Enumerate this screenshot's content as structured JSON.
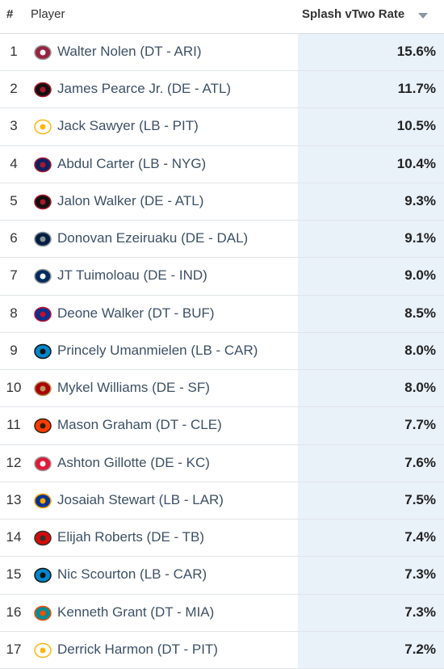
{
  "table": {
    "header": [
      "#",
      "Player",
      "Splash vTwo Rate"
    ],
    "rows": [
      [
        "1",
        "Walter Nolen (DT - ARI)",
        "15.6%"
      ],
      [
        "2",
        "James Pearce Jr. (DE - ATL)",
        "11.7%"
      ],
      [
        "3",
        "Jack Sawyer (LB - PIT)",
        "10.5%"
      ],
      [
        "4",
        "Abdul Carter (LB - NYG)",
        "10.4%"
      ],
      [
        "5",
        "Jalon Walker (DE - ATL)",
        "9.3%"
      ],
      [
        "6",
        "Donovan Ezeiruaku (DE - DAL)",
        "9.1%"
      ],
      [
        "7",
        "JT Tuimoloau (DE - IND)",
        "9.0%"
      ],
      [
        "8",
        "Deone Walker (DT - BUF)",
        "8.5%"
      ],
      [
        "9",
        "Princely Umanmielen (LB - CAR)",
        "8.0%"
      ],
      [
        "10",
        "Mykel Williams (DE - SF)",
        "8.0%"
      ],
      [
        "11",
        "Mason Graham (DT - CLE)",
        "7.7%"
      ],
      [
        "12",
        "Ashton Gillotte (DE - KC)",
        "7.6%"
      ],
      [
        "13",
        "Josaiah Stewart (LB - LAR)",
        "7.5%"
      ],
      [
        "14",
        "Elijah Roberts (DE - TB)",
        "7.4%"
      ],
      [
        "15",
        "Nic Scourton (LB - CAR)",
        "7.3%"
      ],
      [
        "16",
        "Kenneth Grant (DT - MIA)",
        "7.3%"
      ],
      [
        "17",
        "Derrick Harmon (DT - PIT)",
        "7.2%"
      ]
    ]
  }
}
